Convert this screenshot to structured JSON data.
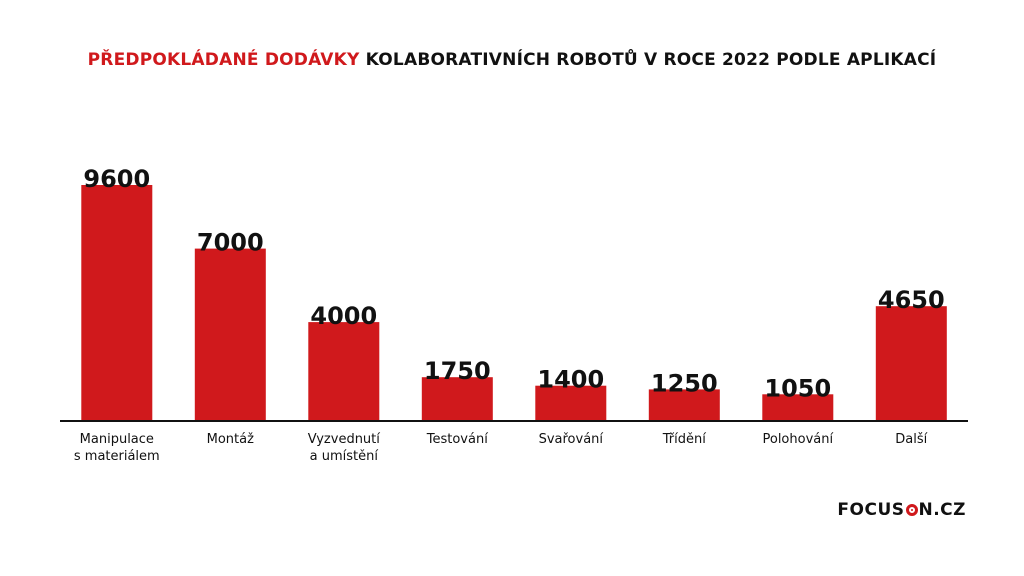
{
  "title": {
    "highlight": "PŘEDPOKLÁDANÉ DODÁVKY",
    "rest": "KOLABORATIVNÍCH ROBOTŮ V ROCE 2022 PODLE APLIKACÍ"
  },
  "brand": {
    "prefix": "FOCUS",
    "suffix": "N.CZ",
    "accent": "#d0191c"
  },
  "chart_data": {
    "type": "bar",
    "categories": [
      "Manipulace s materiálem",
      "Montáž",
      "Vyzvednutí a umístění",
      "Testování",
      "Svařování",
      "Třídění",
      "Polohování",
      "Další"
    ],
    "category_lines": [
      [
        "Manipulace",
        "s materiálem"
      ],
      [
        "Montáž"
      ],
      [
        "Vyzvednutí",
        "a umístění"
      ],
      [
        "Testování"
      ],
      [
        "Svařování"
      ],
      [
        "Třídění"
      ],
      [
        "Polohování"
      ],
      [
        "Další"
      ]
    ],
    "values": [
      9600,
      7000,
      4000,
      1750,
      1400,
      1250,
      1050,
      4650
    ],
    "title": "PŘEDPOKLÁDANÉ DODÁVKY KOLABORATIVNÍCH ROBOTŮ V ROCE 2022 PODLE APLIKACÍ",
    "xlabel": "",
    "ylabel": "",
    "ylim": [
      0,
      9600
    ],
    "grid": false,
    "legend": "none",
    "bar_color": "#d0191c"
  }
}
